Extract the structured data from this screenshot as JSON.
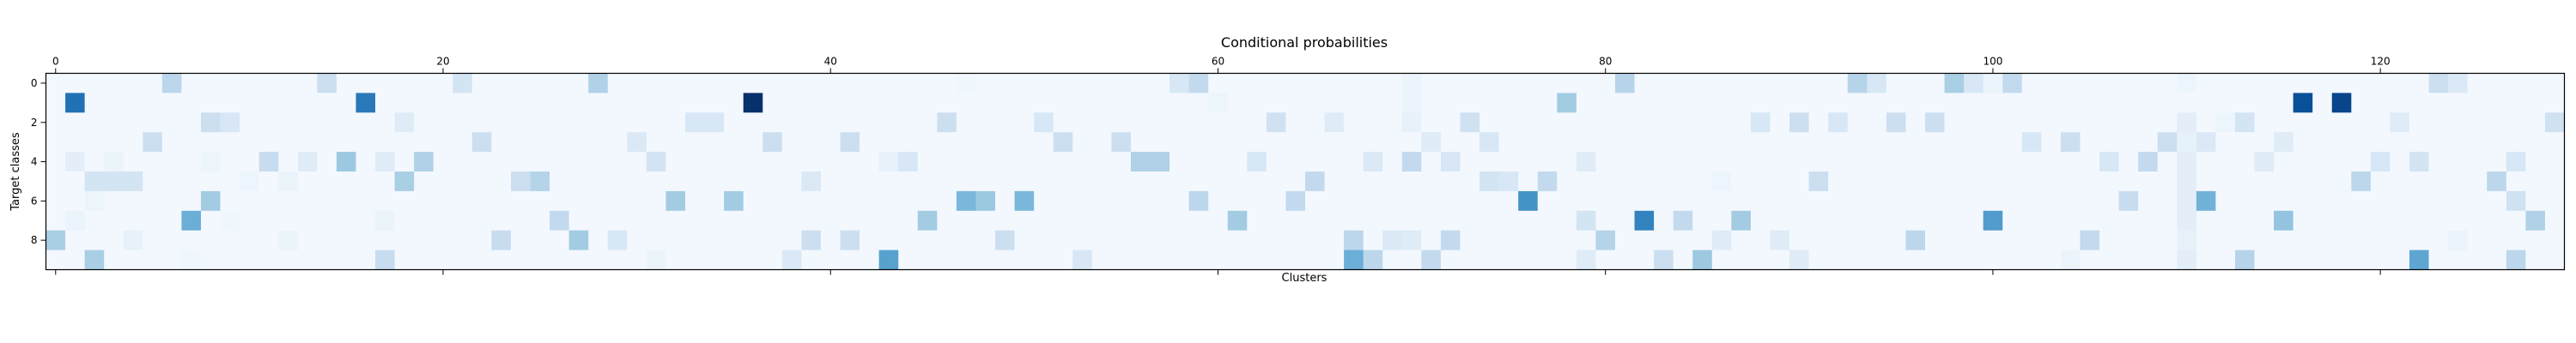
{
  "chart_data": {
    "type": "heatmap",
    "title": "Conditional probabilities",
    "xlabel": "Clusters",
    "ylabel": "Target classes",
    "x_axis_position": "top",
    "x_ticks": [
      0,
      20,
      40,
      60,
      80,
      100,
      120
    ],
    "y_ticks": [
      0,
      2,
      4,
      6,
      8
    ],
    "n_rows": 10,
    "n_cols": 130,
    "colormap": "Blues",
    "vmin": 0,
    "vmax": 1,
    "background_value": 0.02,
    "cells": [
      [
        0,
        6,
        0.28
      ],
      [
        0,
        14,
        0.22
      ],
      [
        0,
        21,
        0.18
      ],
      [
        0,
        28,
        0.32
      ],
      [
        0,
        58,
        0.16
      ],
      [
        0,
        59,
        0.26
      ],
      [
        0,
        70,
        0.06
      ],
      [
        0,
        81,
        0.3
      ],
      [
        0,
        93,
        0.3
      ],
      [
        0,
        94,
        0.16
      ],
      [
        0,
        98,
        0.34
      ],
      [
        0,
        99,
        0.16
      ],
      [
        0,
        100,
        0.06
      ],
      [
        0,
        101,
        0.26
      ],
      [
        0,
        123,
        0.22
      ],
      [
        0,
        124,
        0.14
      ],
      [
        0,
        110,
        0.05
      ],
      [
        0,
        47,
        0.04
      ],
      [
        1,
        1,
        0.75
      ],
      [
        1,
        16,
        0.72
      ],
      [
        1,
        36,
        1.0
      ],
      [
        1,
        78,
        0.36
      ],
      [
        1,
        116,
        0.88
      ],
      [
        1,
        118,
        0.92
      ],
      [
        1,
        60,
        0.05
      ],
      [
        1,
        70,
        0.06
      ],
      [
        2,
        8,
        0.22
      ],
      [
        2,
        9,
        0.16
      ],
      [
        2,
        18,
        0.12
      ],
      [
        2,
        33,
        0.16
      ],
      [
        2,
        34,
        0.16
      ],
      [
        2,
        46,
        0.22
      ],
      [
        2,
        51,
        0.16
      ],
      [
        2,
        63,
        0.2
      ],
      [
        2,
        66,
        0.12
      ],
      [
        2,
        70,
        0.08
      ],
      [
        2,
        73,
        0.2
      ],
      [
        2,
        88,
        0.16
      ],
      [
        2,
        90,
        0.22
      ],
      [
        2,
        92,
        0.16
      ],
      [
        2,
        95,
        0.22
      ],
      [
        2,
        97,
        0.22
      ],
      [
        2,
        110,
        0.1
      ],
      [
        2,
        113,
        0.18
      ],
      [
        2,
        121,
        0.12
      ],
      [
        2,
        129,
        0.2
      ],
      [
        2,
        112,
        0.05
      ],
      [
        3,
        5,
        0.22
      ],
      [
        3,
        22,
        0.22
      ],
      [
        3,
        30,
        0.14
      ],
      [
        3,
        37,
        0.22
      ],
      [
        3,
        41,
        0.22
      ],
      [
        3,
        52,
        0.22
      ],
      [
        3,
        55,
        0.22
      ],
      [
        3,
        71,
        0.12
      ],
      [
        3,
        74,
        0.16
      ],
      [
        3,
        102,
        0.16
      ],
      [
        3,
        104,
        0.22
      ],
      [
        3,
        109,
        0.22
      ],
      [
        3,
        111,
        0.14
      ],
      [
        3,
        115,
        0.12
      ],
      [
        3,
        110,
        0.08
      ],
      [
        4,
        1,
        0.1
      ],
      [
        4,
        3,
        0.06
      ],
      [
        4,
        11,
        0.24
      ],
      [
        4,
        13,
        0.12
      ],
      [
        4,
        15,
        0.38
      ],
      [
        4,
        17,
        0.12
      ],
      [
        4,
        19,
        0.32
      ],
      [
        4,
        31,
        0.18
      ],
      [
        4,
        43,
        0.08
      ],
      [
        4,
        44,
        0.16
      ],
      [
        4,
        56,
        0.32
      ],
      [
        4,
        57,
        0.32
      ],
      [
        4,
        62,
        0.16
      ],
      [
        4,
        68,
        0.14
      ],
      [
        4,
        70,
        0.26
      ],
      [
        4,
        72,
        0.16
      ],
      [
        4,
        79,
        0.12
      ],
      [
        4,
        106,
        0.16
      ],
      [
        4,
        108,
        0.26
      ],
      [
        4,
        110,
        0.1
      ],
      [
        4,
        114,
        0.12
      ],
      [
        4,
        120,
        0.16
      ],
      [
        4,
        122,
        0.18
      ],
      [
        4,
        127,
        0.16
      ],
      [
        4,
        8,
        0.05
      ],
      [
        5,
        2,
        0.18
      ],
      [
        5,
        3,
        0.18
      ],
      [
        5,
        4,
        0.18
      ],
      [
        5,
        12,
        0.06
      ],
      [
        5,
        18,
        0.34
      ],
      [
        5,
        24,
        0.22
      ],
      [
        5,
        25,
        0.3
      ],
      [
        5,
        39,
        0.14
      ],
      [
        5,
        65,
        0.26
      ],
      [
        5,
        74,
        0.18
      ],
      [
        5,
        75,
        0.16
      ],
      [
        5,
        77,
        0.26
      ],
      [
        5,
        91,
        0.22
      ],
      [
        5,
        110,
        0.1
      ],
      [
        5,
        119,
        0.28
      ],
      [
        5,
        126,
        0.28
      ],
      [
        5,
        86,
        0.05
      ],
      [
        5,
        10,
        0.05
      ],
      [
        6,
        8,
        0.36
      ],
      [
        6,
        32,
        0.36
      ],
      [
        6,
        35,
        0.36
      ],
      [
        6,
        47,
        0.46
      ],
      [
        6,
        48,
        0.38
      ],
      [
        6,
        50,
        0.46
      ],
      [
        6,
        59,
        0.28
      ],
      [
        6,
        64,
        0.26
      ],
      [
        6,
        76,
        0.62
      ],
      [
        6,
        107,
        0.24
      ],
      [
        6,
        110,
        0.1
      ],
      [
        6,
        111,
        0.48
      ],
      [
        6,
        127,
        0.2
      ],
      [
        6,
        2,
        0.05
      ],
      [
        7,
        1,
        0.06
      ],
      [
        7,
        7,
        0.5
      ],
      [
        7,
        17,
        0.06
      ],
      [
        7,
        26,
        0.26
      ],
      [
        7,
        45,
        0.36
      ],
      [
        7,
        61,
        0.36
      ],
      [
        7,
        79,
        0.18
      ],
      [
        7,
        82,
        0.68
      ],
      [
        7,
        84,
        0.26
      ],
      [
        7,
        87,
        0.36
      ],
      [
        7,
        100,
        0.58
      ],
      [
        7,
        110,
        0.1
      ],
      [
        7,
        115,
        0.4
      ],
      [
        7,
        128,
        0.32
      ],
      [
        7,
        9,
        0.04
      ],
      [
        8,
        0,
        0.34
      ],
      [
        8,
        4,
        0.08
      ],
      [
        8,
        12,
        0.06
      ],
      [
        8,
        23,
        0.24
      ],
      [
        8,
        27,
        0.36
      ],
      [
        8,
        29,
        0.16
      ],
      [
        8,
        39,
        0.22
      ],
      [
        8,
        41,
        0.22
      ],
      [
        8,
        49,
        0.22
      ],
      [
        8,
        67,
        0.28
      ],
      [
        8,
        69,
        0.14
      ],
      [
        8,
        70,
        0.12
      ],
      [
        8,
        72,
        0.26
      ],
      [
        8,
        80,
        0.3
      ],
      [
        8,
        86,
        0.12
      ],
      [
        8,
        89,
        0.12
      ],
      [
        8,
        96,
        0.28
      ],
      [
        8,
        105,
        0.26
      ],
      [
        8,
        110,
        0.08
      ],
      [
        8,
        124,
        0.06
      ],
      [
        9,
        2,
        0.34
      ],
      [
        9,
        17,
        0.24
      ],
      [
        9,
        31,
        0.06
      ],
      [
        9,
        38,
        0.14
      ],
      [
        9,
        43,
        0.56
      ],
      [
        9,
        53,
        0.16
      ],
      [
        9,
        67,
        0.5
      ],
      [
        9,
        68,
        0.28
      ],
      [
        9,
        71,
        0.26
      ],
      [
        9,
        79,
        0.12
      ],
      [
        9,
        83,
        0.22
      ],
      [
        9,
        85,
        0.38
      ],
      [
        9,
        90,
        0.12
      ],
      [
        9,
        104,
        0.06
      ],
      [
        9,
        110,
        0.1
      ],
      [
        9,
        113,
        0.3
      ],
      [
        9,
        122,
        0.54
      ],
      [
        9,
        127,
        0.28
      ],
      [
        9,
        7,
        0.04
      ]
    ]
  }
}
